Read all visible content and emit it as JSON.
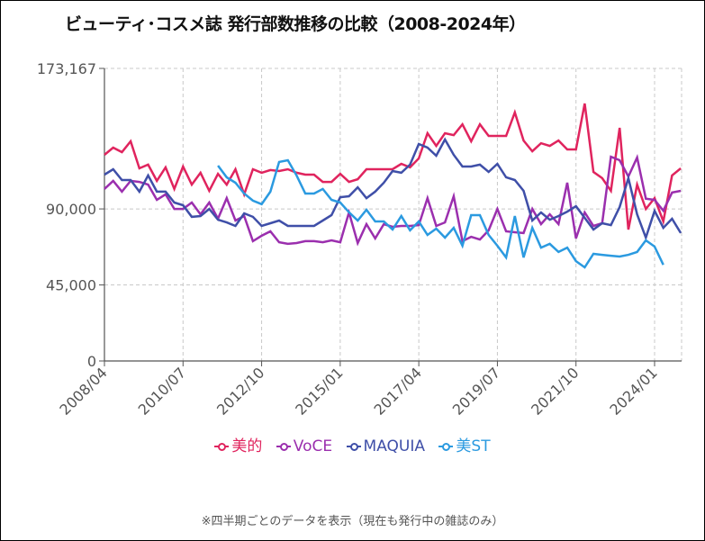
{
  "chart_data": {
    "type": "line",
    "title": "ビューティ･コスメ誌 発行部数推移の比較（2008-2024年）",
    "xlabel": "",
    "ylabel": "",
    "ylim": [
      0,
      173167
    ],
    "yticks": [
      0,
      45000,
      90000,
      173167
    ],
    "ytick_labels": [
      "0",
      "45,000",
      "90,000",
      "173,167"
    ],
    "x_start": "2008/04",
    "x_frequency": "quarterly",
    "x_count": 67,
    "xticks": [
      "2008/04",
      "2010/07",
      "2012/10",
      "2015/01",
      "2017/04",
      "2019/07",
      "2021/10",
      "2024/01"
    ],
    "xtick_indices": [
      0,
      9,
      18,
      27,
      36,
      45,
      54,
      63
    ],
    "grid": true,
    "legend_position": "bottom",
    "series": [
      {
        "name": "美的",
        "color": "#e0245e",
        "start_index": 0,
        "values": [
          122000,
          126300,
          123600,
          130000,
          114000,
          116200,
          106600,
          114600,
          101800,
          115100,
          104400,
          111400,
          100700,
          110800,
          104400,
          113500,
          98600,
          113500,
          111400,
          113000,
          112400,
          113500,
          111400,
          110300,
          110300,
          106000,
          106000,
          110800,
          106000,
          107600,
          113500,
          113500,
          113500,
          113500,
          116700,
          114600,
          119900,
          134800,
          127300,
          134800,
          133700,
          140100,
          130000,
          140100,
          133200,
          133200,
          133200,
          147100,
          130500,
          124100,
          128900,
          127300,
          130500,
          125200,
          125200,
          152400,
          111900,
          108200,
          100700,
          138000,
          77800,
          104400,
          90000,
          96400,
          82600,
          109800,
          114000
        ]
      },
      {
        "name": "VoCE",
        "color": "#9b2fae",
        "start_index": 0,
        "values": [
          101800,
          106600,
          100200,
          106600,
          106000,
          104400,
          95400,
          98600,
          90000,
          90000,
          93800,
          86800,
          93800,
          84200,
          96400,
          83100,
          85800,
          70900,
          74100,
          76700,
          70300,
          69300,
          69800,
          70900,
          70900,
          70300,
          71400,
          70300,
          87900,
          69800,
          81000,
          72500,
          81000,
          79400,
          79900,
          79900,
          80400,
          96400,
          79900,
          82000,
          97500,
          70900,
          73500,
          71900,
          77300,
          90000,
          76700,
          76200,
          75700,
          90000,
          81000,
          86800,
          81000,
          105500,
          72500,
          87900,
          79900,
          81500,
          120900,
          118800,
          109200,
          120400,
          96000,
          95400,
          89000,
          99700,
          100700
        ]
      },
      {
        "name": "MAQUIA",
        "color": "#3f4fa8",
        "start_index": 0,
        "values": [
          110300,
          113500,
          107100,
          107100,
          100200,
          109800,
          100200,
          100200,
          93800,
          92200,
          85300,
          85800,
          90000,
          83600,
          82000,
          79900,
          87400,
          85300,
          79900,
          81500,
          83100,
          79900,
          79900,
          79900,
          79900,
          83100,
          86300,
          96900,
          97500,
          102800,
          96400,
          100200,
          105500,
          112400,
          111400,
          116200,
          128400,
          126300,
          121500,
          131100,
          122000,
          115100,
          115100,
          116200,
          111900,
          116700,
          108700,
          107100,
          100700,
          83100,
          87900,
          83600,
          85800,
          88400,
          91600,
          84700,
          77800,
          81500,
          80400,
          91100,
          108200,
          86800,
          73000,
          88900,
          78800,
          84200,
          75700
        ]
      },
      {
        "name": "美ST",
        "color": "#2b9ae0",
        "start_index": 13,
        "values": [
          115600,
          108700,
          105500,
          99100,
          94900,
          92800,
          100200,
          117800,
          118800,
          109800,
          99100,
          99100,
          101800,
          95400,
          93800,
          88000,
          83100,
          89500,
          82600,
          82600,
          77800,
          85800,
          77300,
          82600,
          74600,
          78300,
          73000,
          78800,
          68200,
          86300,
          86300,
          74600,
          68200,
          61300,
          85800,
          61300,
          78800,
          67100,
          69300,
          64500,
          67100,
          59100,
          55400,
          63400,
          62800,
          62300,
          61800,
          62800,
          64500,
          71400,
          67700,
          56900
        ]
      }
    ]
  },
  "legend": {
    "items": [
      "美的",
      "VoCE",
      "MAQUIA",
      "美ST"
    ]
  },
  "footnote": "※四半期ごとのデータを表示（現在も発行中の雑誌のみ）"
}
